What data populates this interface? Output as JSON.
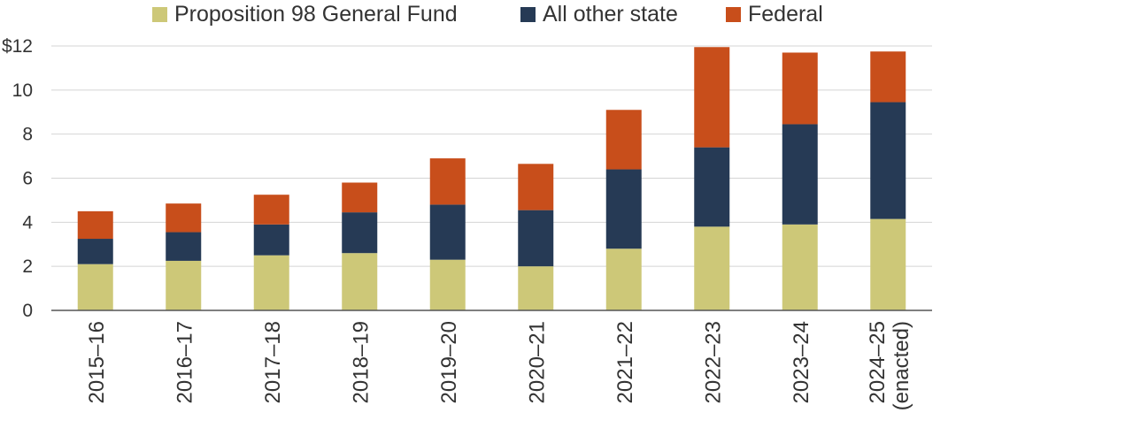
{
  "chart_data": {
    "type": "bar",
    "stacked": true,
    "title": "",
    "xlabel": "",
    "ylabel": "",
    "ylim": [
      0,
      12
    ],
    "y_ticks": [
      "0",
      "2",
      "4",
      "6",
      "8",
      "10",
      "$12"
    ],
    "grid": true,
    "legend_position": "top",
    "categories": [
      [
        "2015–16"
      ],
      [
        "2016–17"
      ],
      [
        "2017–18"
      ],
      [
        "2018–19"
      ],
      [
        "2019–20"
      ],
      [
        "2020–21"
      ],
      [
        "2021–22"
      ],
      [
        "2022–23"
      ],
      [
        "2023–24"
      ],
      [
        "2024–25",
        "(enacted)"
      ]
    ],
    "series": [
      {
        "name": "Proposition 98 General Fund",
        "color": "#cdc878",
        "values": [
          2.1,
          2.25,
          2.5,
          2.6,
          2.3,
          2.0,
          2.8,
          3.8,
          3.9,
          4.15
        ]
      },
      {
        "name": "All other state",
        "color": "#263a55",
        "values": [
          1.15,
          1.3,
          1.4,
          1.85,
          2.5,
          2.55,
          3.6,
          3.6,
          4.55,
          5.3
        ]
      },
      {
        "name": "Federal",
        "color": "#c84e1b",
        "values": [
          1.25,
          1.3,
          1.35,
          1.35,
          2.1,
          2.1,
          2.7,
          4.55,
          3.25,
          2.3
        ]
      }
    ]
  }
}
